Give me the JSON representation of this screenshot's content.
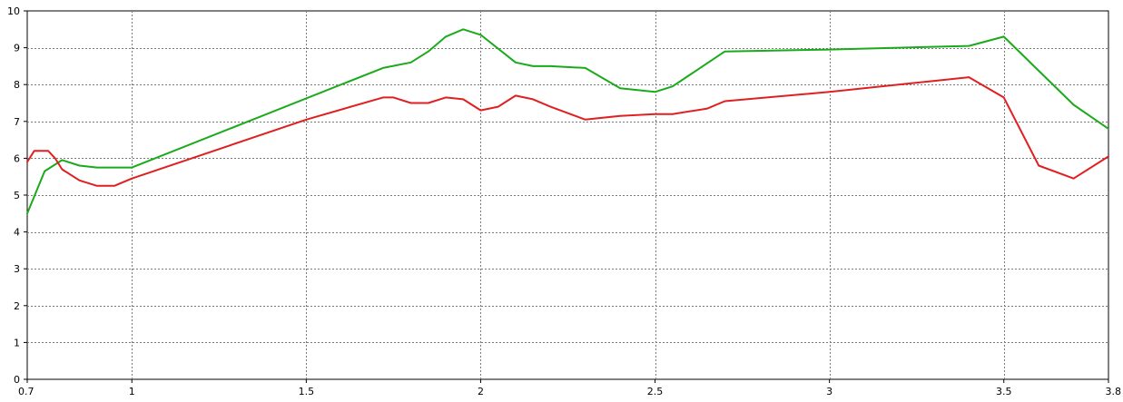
{
  "chart_data": {
    "type": "line",
    "title": "",
    "xlabel": "",
    "ylabel": "",
    "xlim": [
      0.7,
      3.8
    ],
    "ylim": [
      0,
      10
    ],
    "x_ticks": [
      0.7,
      1,
      1.5,
      2,
      2.5,
      3,
      3.5,
      3.8
    ],
    "x_tick_labels": [
      "0.7",
      "1",
      "1.5",
      "2",
      "2.5",
      "3",
      "3.5",
      "3.8"
    ],
    "y_ticks": [
      0,
      1,
      2,
      3,
      4,
      5,
      6,
      7,
      8,
      9,
      10
    ],
    "y_tick_labels": [
      "0",
      "1",
      "2",
      "3",
      "4",
      "5",
      "6",
      "7",
      "8",
      "9",
      "10"
    ],
    "grid": true,
    "legend": "none",
    "series": [
      {
        "color": "#1aaa1a",
        "x": [
          0.7,
          0.75,
          0.8,
          0.85,
          0.9,
          0.95,
          1.0,
          1.72,
          1.8,
          1.85,
          1.9,
          1.95,
          2.0,
          2.1,
          2.15,
          2.2,
          2.3,
          2.4,
          2.5,
          2.55,
          2.7,
          3.0,
          3.4,
          3.5,
          3.7,
          3.8
        ],
        "y": [
          4.5,
          5.65,
          5.95,
          5.8,
          5.75,
          5.75,
          5.75,
          8.45,
          8.6,
          8.9,
          9.3,
          9.5,
          9.35,
          8.6,
          8.5,
          8.5,
          8.45,
          7.9,
          7.8,
          7.95,
          8.9,
          8.95,
          9.05,
          9.3,
          7.45,
          6.8
        ]
      },
      {
        "color": "#e02020",
        "x": [
          0.7,
          0.72,
          0.74,
          0.76,
          0.78,
          0.8,
          0.85,
          0.9,
          0.95,
          1.0,
          1.5,
          1.72,
          1.75,
          1.8,
          1.85,
          1.9,
          1.95,
          2.0,
          2.05,
          2.1,
          2.15,
          2.2,
          2.3,
          2.4,
          2.5,
          2.55,
          2.65,
          2.7,
          3.0,
          3.4,
          3.5,
          3.6,
          3.7,
          3.8
        ],
        "y": [
          5.9,
          6.2,
          6.2,
          6.2,
          6.0,
          5.7,
          5.4,
          5.25,
          5.25,
          5.45,
          7.05,
          7.65,
          7.65,
          7.5,
          7.5,
          7.65,
          7.6,
          7.3,
          7.4,
          7.7,
          7.6,
          7.4,
          7.05,
          7.15,
          7.2,
          7.2,
          7.35,
          7.55,
          7.8,
          8.2,
          7.65,
          5.8,
          5.45,
          6.05
        ]
      }
    ]
  }
}
